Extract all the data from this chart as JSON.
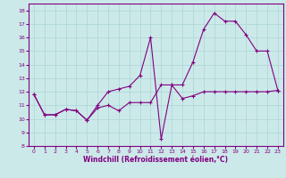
{
  "xlabel": "Windchill (Refroidissement éolien,°C)",
  "xlim": [
    -0.5,
    23.5
  ],
  "ylim": [
    8,
    18.5
  ],
  "yticks": [
    8,
    9,
    10,
    11,
    12,
    13,
    14,
    15,
    16,
    17,
    18
  ],
  "xticks": [
    0,
    1,
    2,
    3,
    4,
    5,
    6,
    7,
    8,
    9,
    10,
    11,
    12,
    13,
    14,
    15,
    16,
    17,
    18,
    19,
    20,
    21,
    22,
    23
  ],
  "background_color": "#cce9e9",
  "line_color": "#800080",
  "grid_color": "#aad4d4",
  "series1_x": [
    0,
    1,
    2,
    3,
    4,
    5,
    6,
    7,
    8,
    9,
    10,
    11,
    12,
    13,
    14,
    15,
    16,
    17,
    18,
    19,
    20,
    21,
    22,
    23
  ],
  "series1_y": [
    11.8,
    10.3,
    10.3,
    10.7,
    10.6,
    9.9,
    10.8,
    11.0,
    10.6,
    11.2,
    11.2,
    11.2,
    12.5,
    12.5,
    11.5,
    11.7,
    12.0,
    12.0,
    12.0,
    12.0,
    12.0,
    12.0,
    12.0,
    12.1
  ],
  "series2_x": [
    0,
    1,
    2,
    3,
    4,
    5,
    6,
    7,
    8,
    9,
    10,
    11,
    12,
    13,
    14,
    15,
    16,
    17,
    18,
    19,
    20,
    21,
    22,
    23
  ],
  "series2_y": [
    11.8,
    10.3,
    10.3,
    10.7,
    10.6,
    9.9,
    11.0,
    12.0,
    12.2,
    12.4,
    13.2,
    16.0,
    8.5,
    12.5,
    12.5,
    14.2,
    16.6,
    17.8,
    17.2,
    17.2,
    16.2,
    15.0,
    15.0,
    12.1
  ]
}
